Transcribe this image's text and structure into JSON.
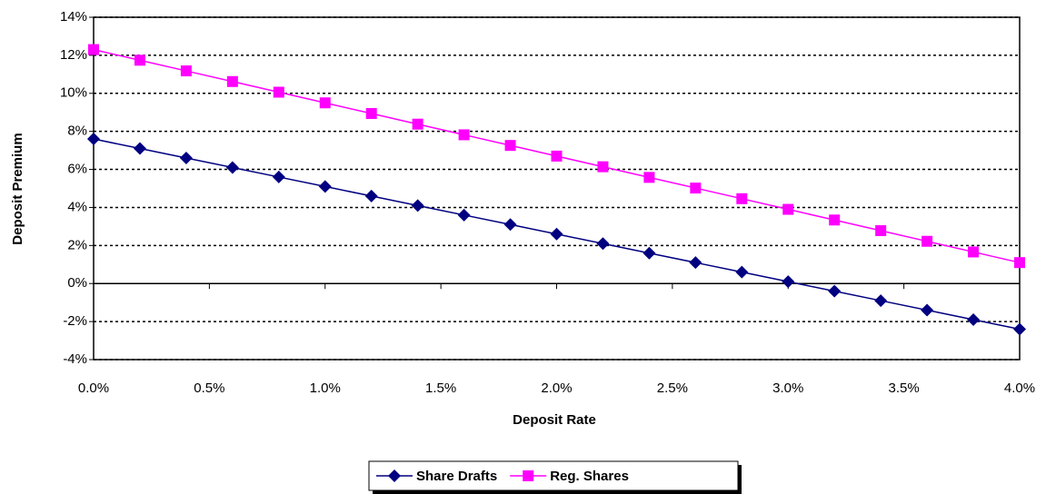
{
  "chart_data": {
    "type": "line",
    "xlabel": "Deposit Rate",
    "ylabel": "Deposit Premium",
    "x": [
      0,
      0.2,
      0.4,
      0.6,
      0.8,
      1.0,
      1.2,
      1.4,
      1.6,
      1.8,
      2.0,
      2.2,
      2.4,
      2.6,
      2.8,
      3.0,
      3.2,
      3.4,
      3.6,
      3.8,
      4.0
    ],
    "series": [
      {
        "name": "Share Drafts",
        "color": "#000080",
        "marker": "diamond",
        "values": [
          7.6,
          7.1,
          6.6,
          6.1,
          5.6,
          5.1,
          4.6,
          4.1,
          3.6,
          3.1,
          2.6,
          2.1,
          1.6,
          1.1,
          0.6,
          0.1,
          -0.4,
          -0.9,
          -1.4,
          -1.9,
          -2.4
        ]
      },
      {
        "name": "Reg. Shares",
        "color": "#ff00ff",
        "marker": "square",
        "values": [
          12.3,
          11.74,
          11.18,
          10.62,
          10.06,
          9.5,
          8.94,
          8.38,
          7.82,
          7.26,
          6.7,
          6.14,
          5.58,
          5.02,
          4.46,
          3.9,
          3.34,
          2.78,
          2.22,
          1.66,
          1.1
        ]
      }
    ],
    "xlim": [
      0,
      4
    ],
    "xticks": [
      {
        "value": 0,
        "label": "0.0%"
      },
      {
        "value": 0.5,
        "label": "0.5%"
      },
      {
        "value": 1,
        "label": "1.0%"
      },
      {
        "value": 1.5,
        "label": "1.5%"
      },
      {
        "value": 2,
        "label": "2.0%"
      },
      {
        "value": 2.5,
        "label": "2.5%"
      },
      {
        "value": 3,
        "label": "3.0%"
      },
      {
        "value": 3.5,
        "label": "3.5%"
      },
      {
        "value": 4,
        "label": "4.0%"
      }
    ],
    "ylim": [
      -4,
      14
    ],
    "yticks": [
      {
        "value": -4,
        "label": "-4%"
      },
      {
        "value": -2,
        "label": "-2%"
      },
      {
        "value": 0,
        "label": "0%"
      },
      {
        "value": 2,
        "label": "2%"
      },
      {
        "value": 4,
        "label": "4%"
      },
      {
        "value": 6,
        "label": "6%"
      },
      {
        "value": 8,
        "label": "8%"
      },
      {
        "value": 10,
        "label": "10%"
      },
      {
        "value": 12,
        "label": "12%"
      },
      {
        "value": 14,
        "label": "14%"
      }
    ],
    "grid": true,
    "legend": "bottom"
  }
}
